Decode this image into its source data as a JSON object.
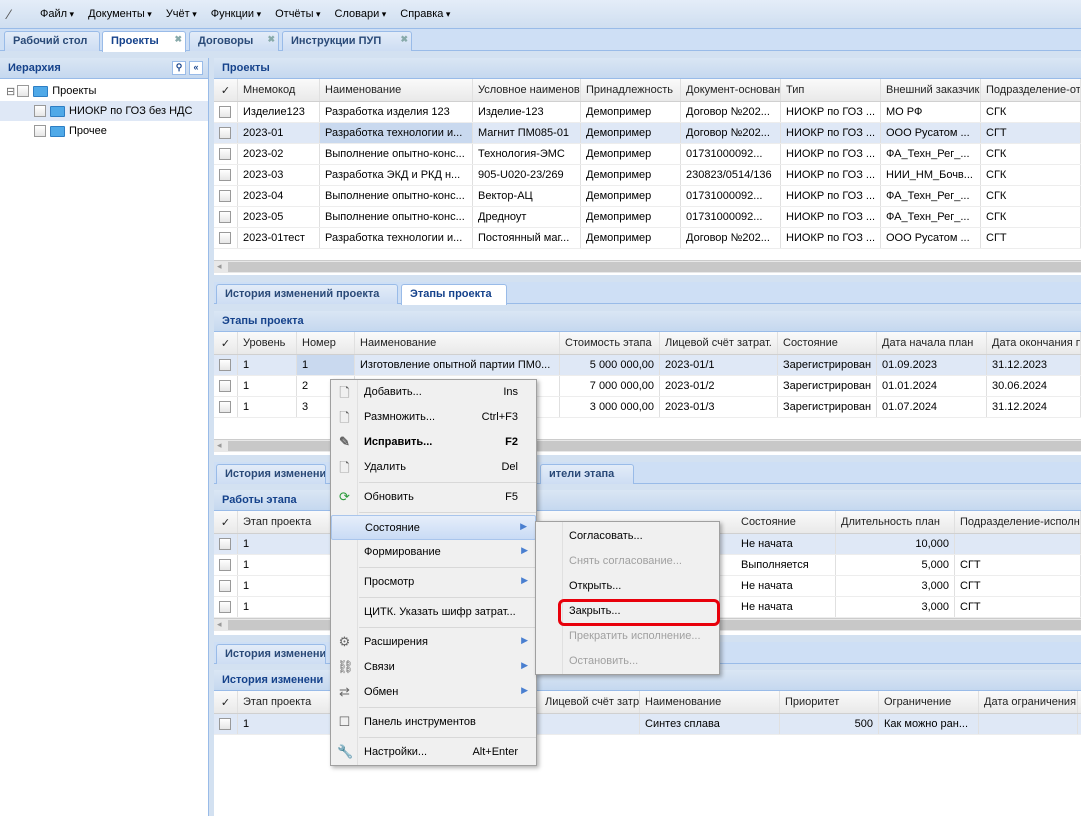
{
  "menubar": {
    "items": [
      "Файл",
      "Документы",
      "Учёт",
      "Функции",
      "Отчёты",
      "Словари",
      "Справка"
    ]
  },
  "tabs": [
    {
      "label": "Рабочий стол",
      "closable": false
    },
    {
      "label": "Проекты",
      "closable": true,
      "active": true
    },
    {
      "label": "Договоры",
      "closable": true
    },
    {
      "label": "Инструкции ПУП",
      "closable": true
    }
  ],
  "hierarchy": {
    "title": "Иерархия",
    "nodes": [
      {
        "label": "Проекты",
        "level": 0
      },
      {
        "label": "НИОКР по ГОЗ без НДС",
        "level": 1,
        "selected": true
      },
      {
        "label": "Прочее",
        "level": 1
      }
    ]
  },
  "projects": {
    "title": "Проекты",
    "columns": [
      "Мнемокод",
      "Наименование",
      "Условное наименова",
      "Принадлежность",
      "Документ-основан",
      "Тип",
      "Внешний заказчик",
      "Подразделение-от"
    ],
    "rows": [
      [
        "Изделие123",
        "Разработка изделия 123",
        "Изделие-123",
        "Демопример",
        "Договор №202...",
        "НИОКР по ГОЗ ...",
        "МО РФ",
        "СГК"
      ],
      [
        "2023-01",
        "Разработка технологии и...",
        "Магнит ПМ085-01",
        "Демопример",
        "Договор №202...",
        "НИОКР по ГОЗ ...",
        "ООО Русатом ...",
        "СГТ"
      ],
      [
        "2023-02",
        "Выполнение опытно-конс...",
        "Технология-ЭМС",
        "Демопример",
        "01731000092...",
        "НИОКР по ГОЗ ...",
        "ФА_Техн_Рег_...",
        "СГК"
      ],
      [
        "2023-03",
        "Разработка ЭКД и РКД н...",
        "905-U020-23/269",
        "Демопример",
        "230823/0514/136",
        "НИОКР по ГОЗ ...",
        "НИИ_НМ_Бочв...",
        "СГК"
      ],
      [
        "2023-04",
        "Выполнение опытно-конс...",
        "Вектор-АЦ",
        "Демопример",
        "01731000092...",
        "НИОКР по ГОЗ ...",
        "ФА_Техн_Рег_...",
        "СГК"
      ],
      [
        "2023-05",
        "Выполнение опытно-конс...",
        "Дредноут",
        "Демопример",
        "01731000092...",
        "НИОКР по ГОЗ ...",
        "ФА_Техн_Рег_...",
        "СГК"
      ],
      [
        "2023-01тест",
        "Разработка технологии и...",
        "Постоянный маг...",
        "Демопример",
        "Договор №202...",
        "НИОКР по ГОЗ ...",
        "ООО Русатом ...",
        "СГТ"
      ]
    ],
    "selected_row": 1
  },
  "project_tabs": [
    "История изменений проекта",
    "Этапы проекта"
  ],
  "stages": {
    "title": "Этапы проекта",
    "columns": [
      "Уровень",
      "Номер",
      "Наименование",
      "Стоимость этапа",
      "Лицевой счёт затрат.",
      "Состояние",
      "Дата начала план",
      "Дата окончания п"
    ],
    "rows": [
      [
        "1",
        "1",
        "Изготовление опытной партии ПМ0...",
        "5 000 000,00",
        "2023-01/1",
        "Зарегистрирован",
        "01.09.2023",
        "31.12.2023"
      ],
      [
        "1",
        "2",
        "",
        "7 000 000,00",
        "2023-01/2",
        "Зарегистрирован",
        "01.01.2024",
        "30.06.2024"
      ],
      [
        "1",
        "3",
        "",
        "3 000 000,00",
        "2023-01/3",
        "Зарегистрирован",
        "01.07.2024",
        "31.12.2024"
      ]
    ],
    "selected_row": 0
  },
  "stage_tabs": [
    "История изменени",
    "ители этапа"
  ],
  "works": {
    "title": "Работы этапа",
    "columns": [
      "Этап проекта",
      "Состояние",
      "Длительность план",
      "Подразделение-исполни"
    ],
    "rows": [
      [
        "1",
        "Не начата",
        "10,000",
        ""
      ],
      [
        "1",
        "Выполняется",
        "5,000",
        "СГТ"
      ],
      [
        "1",
        "Не начата",
        "3,000",
        "СГТ"
      ],
      [
        "1",
        "Не начата",
        "3,000",
        "СГТ"
      ]
    ],
    "selected_row": 0
  },
  "work_tabs": [
    "История изменени"
  ],
  "history": {
    "title": "История изменени",
    "columns": [
      "Этап проекта",
      "Лицевой счёт затр",
      "Наименование",
      "Приоритет",
      "Ограничение",
      "Дата ограничения"
    ],
    "rows": [
      [
        "1",
        "",
        "Синтез сплава",
        "500",
        "Как можно ран...",
        ""
      ]
    ],
    "selected_row": 0
  },
  "context_menu": {
    "items": [
      {
        "label": "Добавить...",
        "shortcut": "Ins",
        "icon": "document-icon"
      },
      {
        "label": "Размножить...",
        "shortcut": "Ctrl+F3",
        "icon": "document-add-icon"
      },
      {
        "label": "Исправить...",
        "shortcut": "F2",
        "icon": "edit-icon",
        "bold": true
      },
      {
        "label": "Удалить",
        "shortcut": "Del",
        "icon": "document-delete-icon"
      },
      {
        "sep": true
      },
      {
        "label": "Обновить",
        "shortcut": "F5",
        "icon": "refresh-icon"
      },
      {
        "sep": true
      },
      {
        "label": "Состояние",
        "submenu": true,
        "highlighted": true
      },
      {
        "label": "Формирование",
        "submenu": true
      },
      {
        "sep": true
      },
      {
        "label": "Просмотр",
        "submenu": true
      },
      {
        "sep": true
      },
      {
        "label": "ЦИТК. Указать шифр затрат..."
      },
      {
        "sep": true
      },
      {
        "label": "Расширения",
        "submenu": true,
        "icon": "gear-icon"
      },
      {
        "label": "Связи",
        "submenu": true,
        "icon": "link-icon"
      },
      {
        "label": "Обмен",
        "submenu": true,
        "icon": "exchange-icon"
      },
      {
        "sep": true
      },
      {
        "label": "Панель инструментов",
        "icon": "checkbox-icon"
      },
      {
        "sep": true
      },
      {
        "label": "Настройки...",
        "shortcut": "Alt+Enter",
        "icon": "wrench-icon"
      }
    ]
  },
  "state_submenu": {
    "items": [
      {
        "label": "Согласовать...",
        "enabled": true
      },
      {
        "label": "Снять согласование...",
        "enabled": false
      },
      {
        "label": "Открыть...",
        "enabled": true
      },
      {
        "label": "Закрыть...",
        "enabled": true,
        "highlighted_box": true
      },
      {
        "label": "Прекратить исполнение...",
        "enabled": false
      },
      {
        "label": "Остановить...",
        "enabled": false
      }
    ]
  },
  "colors": {
    "header_text": "#15428b",
    "selection": "#dfe8f6",
    "highlight_box": "#e8000b"
  }
}
